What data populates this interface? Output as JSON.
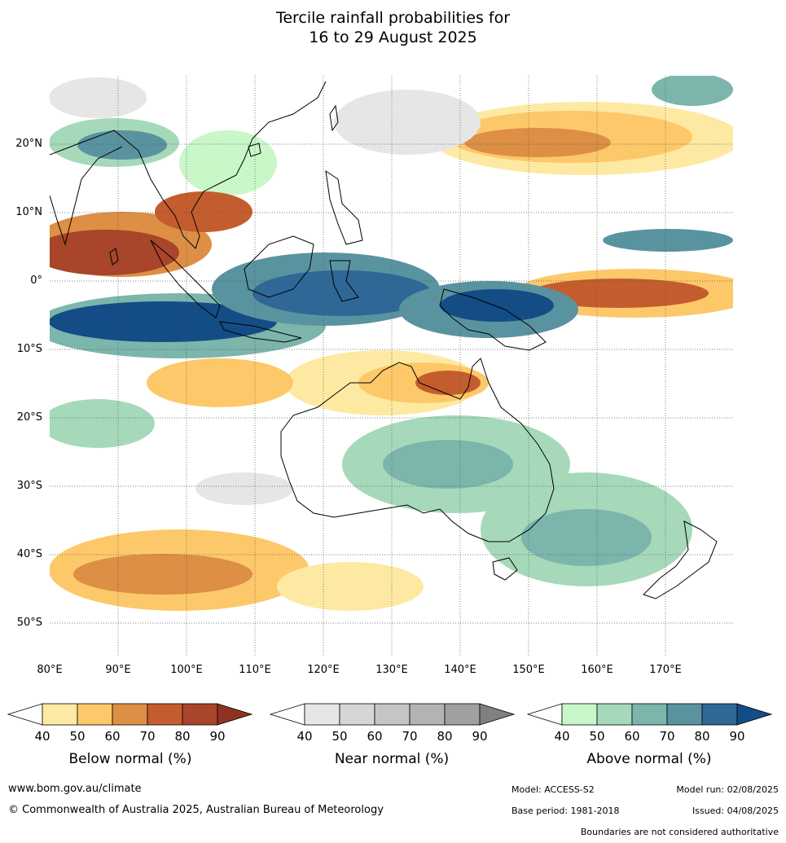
{
  "title": {
    "line1": "Tercile rainfall probabilities for",
    "line2": "16 to 29 August 2025"
  },
  "map": {
    "lon_labels": [
      "80°E",
      "90°E",
      "100°E",
      "110°E",
      "120°E",
      "130°E",
      "140°E",
      "150°E",
      "160°E",
      "170°E"
    ],
    "lat_labels": [
      "20°N",
      "10°N",
      "0°",
      "10°S",
      "20°S",
      "30°S",
      "40°S",
      "50°S"
    ],
    "lon_range": [
      80,
      180
    ],
    "lat_range": [
      -55,
      30
    ]
  },
  "legends": [
    {
      "name": "Below normal (%)",
      "ticks": [
        "40",
        "50",
        "60",
        "70",
        "80",
        "90"
      ],
      "colors": [
        "#ffffff",
        "#fee9a2",
        "#fdc86a",
        "#dc8f45",
        "#c45d2e",
        "#a8452a",
        "#8e3322"
      ]
    },
    {
      "name": "Near normal (%)",
      "ticks": [
        "40",
        "50",
        "60",
        "70",
        "80",
        "90"
      ],
      "colors": [
        "#ffffff",
        "#e6e6e6",
        "#d6d6d6",
        "#c5c5c5",
        "#b3b3b3",
        "#a0a0a0",
        "#808080"
      ]
    },
    {
      "name": "Above normal (%)",
      "ticks": [
        "40",
        "50",
        "60",
        "70",
        "80",
        "90"
      ],
      "colors": [
        "#ffffff",
        "#c9f7c8",
        "#a5d9b9",
        "#7bb5ac",
        "#5a93a0",
        "#2f6797",
        "#144c86"
      ]
    }
  ],
  "footer": {
    "website": "www.bom.gov.au/climate",
    "copyright": "© Commonwealth of Australia 2025, Australian Bureau of Meteorology",
    "model": "Model: ACCESS-S2",
    "model_run": "Model run: 02/08/2025",
    "base_period": "Base period: 1981-2018",
    "issued": "Issued: 04/08/2025",
    "disclaimer": "Boundaries are not considered authoritative"
  }
}
